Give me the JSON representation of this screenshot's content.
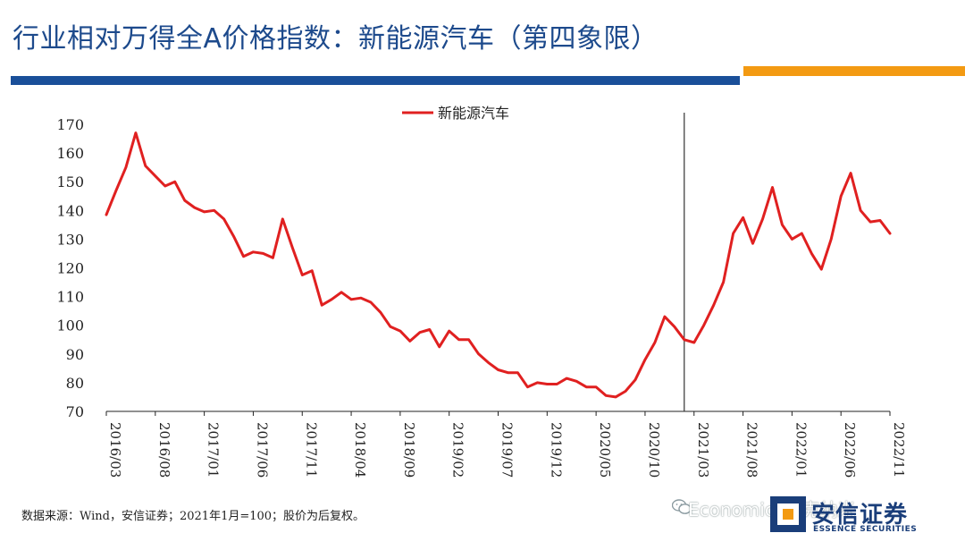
{
  "header": {
    "title": "行业相对万得全A价格指数：新能源汽车（第四象限）",
    "colors": {
      "title": "#1d4a8c",
      "blue_bar": "#1a4f99",
      "orange_bar": "#f39a12"
    }
  },
  "chart_data": {
    "type": "line",
    "title": "",
    "xlabel": "",
    "ylabel": "",
    "ylim": [
      70,
      170
    ],
    "y_ticks": [
      70,
      80,
      90,
      100,
      110,
      120,
      130,
      140,
      150,
      160,
      170
    ],
    "x_tick_labels": [
      "2016/03",
      "2016/08",
      "2017/01",
      "2017/06",
      "2017/11",
      "2018/04",
      "2018/09",
      "2019/02",
      "2019/07",
      "2019/12",
      "2020/05",
      "2020/10",
      "2021/03",
      "2021/08",
      "2022/01",
      "2022/06",
      "2022/11"
    ],
    "grid": false,
    "legend": {
      "position": "top-center"
    },
    "vline_after_label": "2021/03",
    "series": [
      {
        "name": "新能源汽车",
        "color": "#e02020",
        "values": [
          138.5,
          147,
          155,
          167,
          155.5,
          152,
          148.5,
          150,
          143.5,
          141,
          139.5,
          140,
          137,
          131,
          124,
          125.5,
          125,
          123.5,
          137,
          127,
          117.5,
          119,
          107,
          109,
          111.5,
          109,
          109.5,
          108,
          104.5,
          99.5,
          98,
          94.5,
          97.5,
          98.5,
          92.5,
          98,
          95,
          95,
          90,
          87,
          84.5,
          83.5,
          83.5,
          78.5,
          80,
          79.5,
          79.5,
          81.5,
          80.5,
          78.5,
          78.5,
          75.5,
          75,
          77,
          81,
          88,
          94,
          103,
          99.5,
          95,
          94,
          100,
          107,
          115,
          132,
          137.5,
          128.5,
          137,
          148,
          135,
          130,
          132,
          125,
          119.5,
          130,
          145,
          153,
          140,
          136,
          136.5,
          132
        ]
      }
    ]
  },
  "footer": {
    "source": "数据来源：Wind，安信证券；2021年1月=100；股价为后复权。",
    "watermark": "Economics一克纳米"
  },
  "logo": {
    "name": "安信证券",
    "english": "ESSENCE SECURITIES"
  }
}
